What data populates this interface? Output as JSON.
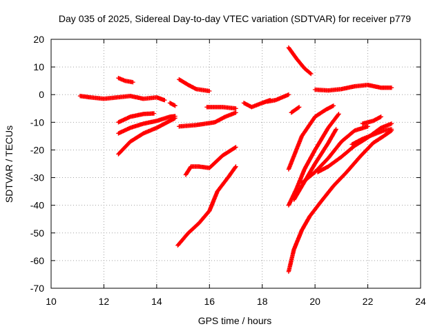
{
  "chart_data": {
    "type": "scatter",
    "title": "Day 035 of 2025, Sidereal Day-to-day VTEC variation (SDTVAR) for receiver p779",
    "xlabel": "GPS time / hours",
    "ylabel": "SDTVAR / TECUs",
    "xlim": [
      10,
      24
    ],
    "ylim": [
      -70,
      20
    ],
    "xticks": [
      10,
      12,
      14,
      16,
      18,
      20,
      22,
      24
    ],
    "yticks": [
      20,
      10,
      0,
      -10,
      -20,
      -30,
      -40,
      -50,
      -60,
      -70
    ],
    "grid": true,
    "marker": "+",
    "color": "#ff0000",
    "series": [
      {
        "name": "arc-01",
        "points": [
          [
            11.1,
            -0.5
          ],
          [
            11.5,
            -1.0
          ],
          [
            12.0,
            -1.5
          ],
          [
            12.5,
            -1.0
          ],
          [
            13.0,
            -0.5
          ],
          [
            13.5,
            -1.5
          ],
          [
            14.0,
            -1.0
          ],
          [
            14.3,
            -2.0
          ]
        ]
      },
      {
        "name": "arc-02",
        "points": [
          [
            12.55,
            6.0
          ],
          [
            12.8,
            5.0
          ],
          [
            13.1,
            4.5
          ]
        ]
      },
      {
        "name": "arc-03",
        "points": [
          [
            12.55,
            -10.0
          ],
          [
            13.0,
            -8.0
          ],
          [
            13.5,
            -7.0
          ],
          [
            13.9,
            -6.8
          ]
        ]
      },
      {
        "name": "arc-04",
        "points": [
          [
            12.55,
            -14.0
          ],
          [
            13.0,
            -12.0
          ],
          [
            13.5,
            -10.5
          ],
          [
            14.0,
            -9.5
          ],
          [
            14.5,
            -8.0
          ],
          [
            14.7,
            -7.8
          ]
        ]
      },
      {
        "name": "arc-05",
        "points": [
          [
            12.55,
            -21.5
          ],
          [
            13.0,
            -17.0
          ],
          [
            13.5,
            -14.0
          ],
          [
            14.0,
            -12.0
          ],
          [
            14.5,
            -9.5
          ],
          [
            14.7,
            -8.5
          ]
        ]
      },
      {
        "name": "arc-06",
        "points": [
          [
            14.5,
            -3.0
          ],
          [
            14.7,
            -4.0
          ]
        ]
      },
      {
        "name": "arc-07",
        "points": [
          [
            14.85,
            5.5
          ],
          [
            15.2,
            3.5
          ],
          [
            15.5,
            2.0
          ],
          [
            16.0,
            1.3
          ]
        ]
      },
      {
        "name": "arc-08",
        "points": [
          [
            14.85,
            -11.5
          ],
          [
            15.5,
            -11.0
          ],
          [
            16.2,
            -10.0
          ],
          [
            16.6,
            -8.0
          ],
          [
            17.0,
            -6.5
          ]
        ]
      },
      {
        "name": "arc-09",
        "points": [
          [
            15.9,
            -4.5
          ],
          [
            16.5,
            -4.5
          ],
          [
            17.0,
            -5.0
          ]
        ]
      },
      {
        "name": "arc-10",
        "points": [
          [
            15.1,
            -29.0
          ],
          [
            15.3,
            -26.0
          ],
          [
            15.6,
            -26.0
          ],
          [
            16.0,
            -26.5
          ],
          [
            16.5,
            -22.0
          ],
          [
            17.0,
            -19.0
          ]
        ]
      },
      {
        "name": "arc-11",
        "points": [
          [
            14.8,
            -54.5
          ],
          [
            15.2,
            -50.0
          ],
          [
            15.6,
            -46.5
          ],
          [
            16.0,
            -42.0
          ],
          [
            16.3,
            -35.0
          ],
          [
            16.7,
            -30.0
          ],
          [
            17.0,
            -26.0
          ]
        ]
      },
      {
        "name": "arc-12",
        "points": [
          [
            17.3,
            -3.0
          ],
          [
            17.6,
            -4.5
          ],
          [
            18.0,
            -3.0
          ],
          [
            18.3,
            -2.0
          ]
        ]
      },
      {
        "name": "arc-13",
        "points": [
          [
            18.2,
            -2.5
          ],
          [
            18.5,
            -2.0
          ],
          [
            19.0,
            0.0
          ]
        ]
      },
      {
        "name": "arc-14",
        "points": [
          [
            19.0,
            17.0
          ],
          [
            19.3,
            13.0
          ],
          [
            19.6,
            9.5
          ],
          [
            19.85,
            7.5
          ]
        ]
      },
      {
        "name": "arc-15",
        "points": [
          [
            19.1,
            -6.5
          ],
          [
            19.4,
            -4.5
          ]
        ]
      },
      {
        "name": "arc-16",
        "points": [
          [
            19.0,
            -27.0
          ],
          [
            19.5,
            -15.0
          ],
          [
            20.0,
            -8.0
          ],
          [
            20.4,
            -5.5
          ],
          [
            20.7,
            -4.0
          ]
        ]
      },
      {
        "name": "arc-17",
        "points": [
          [
            19.0,
            -40.0
          ],
          [
            19.3,
            -34.0
          ],
          [
            19.6,
            -27.0
          ],
          [
            20.0,
            -20.0
          ],
          [
            20.5,
            -12.0
          ],
          [
            20.9,
            -7.0
          ]
        ]
      },
      {
        "name": "arc-18",
        "points": [
          [
            19.2,
            -38.0
          ],
          [
            19.6,
            -31.5
          ],
          [
            20.0,
            -25.0
          ],
          [
            20.5,
            -17.5
          ],
          [
            20.8,
            -12.5
          ]
        ]
      },
      {
        "name": "arc-19",
        "points": [
          [
            19.5,
            -32.0
          ],
          [
            20.0,
            -28.0
          ],
          [
            20.5,
            -23.0
          ],
          [
            21.0,
            -17.0
          ],
          [
            21.5,
            -13.0
          ],
          [
            22.0,
            -11.5
          ]
        ]
      },
      {
        "name": "arc-20",
        "points": [
          [
            20.1,
            -28.0
          ],
          [
            20.5,
            -26.0
          ],
          [
            21.0,
            -22.5
          ],
          [
            21.5,
            -18.5
          ],
          [
            22.0,
            -15.5
          ],
          [
            22.5,
            -12.0
          ],
          [
            22.9,
            -10.5
          ]
        ]
      },
      {
        "name": "arc-21",
        "points": [
          [
            20.0,
            1.8
          ],
          [
            20.5,
            1.5
          ],
          [
            21.0,
            2.0
          ],
          [
            21.5,
            3.0
          ],
          [
            22.0,
            3.5
          ],
          [
            22.5,
            2.5
          ],
          [
            22.9,
            2.5
          ]
        ]
      },
      {
        "name": "arc-22",
        "points": [
          [
            21.4,
            -18.0
          ],
          [
            21.8,
            -16.0
          ],
          [
            22.2,
            -14.5
          ],
          [
            22.6,
            -13.0
          ],
          [
            22.9,
            -12.5
          ]
        ]
      },
      {
        "name": "arc-23",
        "points": [
          [
            21.8,
            -10.5
          ],
          [
            22.2,
            -9.5
          ],
          [
            22.5,
            -8.0
          ]
        ]
      },
      {
        "name": "arc-24",
        "points": [
          [
            19.0,
            -64.0
          ],
          [
            19.2,
            -56.0
          ],
          [
            19.5,
            -49.0
          ],
          [
            19.8,
            -44.0
          ],
          [
            20.2,
            -39.0
          ],
          [
            20.7,
            -33.0
          ],
          [
            21.2,
            -28.0
          ],
          [
            21.7,
            -22.5
          ],
          [
            22.2,
            -17.5
          ],
          [
            22.6,
            -15.0
          ],
          [
            22.9,
            -13.0
          ]
        ]
      }
    ]
  }
}
